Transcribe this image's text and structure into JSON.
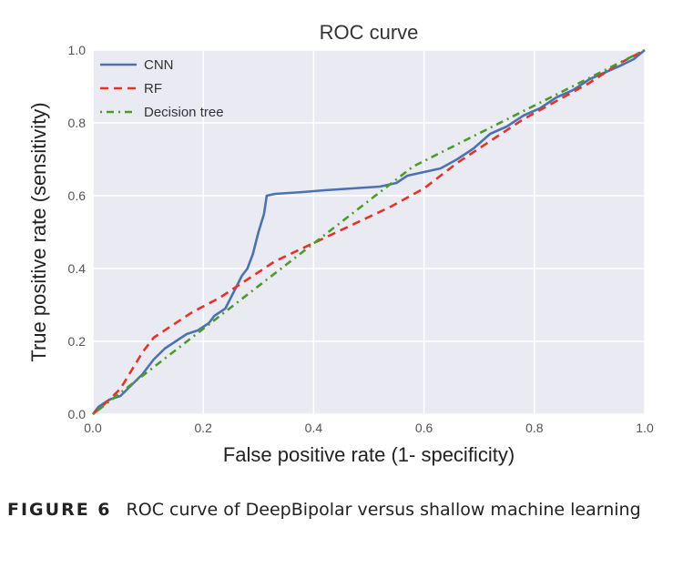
{
  "chart_data": {
    "type": "line",
    "title": "ROC curve",
    "xlabel": "False positive rate (1- specificity)",
    "ylabel": "True positive rate (sensitivity)",
    "xlim": [
      0.0,
      1.0
    ],
    "ylim": [
      0.0,
      1.0
    ],
    "xticks": [
      "0.0",
      "0.2",
      "0.4",
      "0.6",
      "0.8",
      "1.0"
    ],
    "yticks": [
      "0.0",
      "0.2",
      "0.4",
      "0.6",
      "0.8",
      "1.0"
    ],
    "grid": true,
    "legend_position": "top-left",
    "series": [
      {
        "name": "CNN",
        "color": "#4c72b0",
        "style": "solid",
        "points": [
          [
            0.0,
            0.0
          ],
          [
            0.01,
            0.02
          ],
          [
            0.02,
            0.03
          ],
          [
            0.03,
            0.04
          ],
          [
            0.05,
            0.05
          ],
          [
            0.07,
            0.08
          ],
          [
            0.09,
            0.11
          ],
          [
            0.11,
            0.15
          ],
          [
            0.13,
            0.18
          ],
          [
            0.15,
            0.2
          ],
          [
            0.17,
            0.22
          ],
          [
            0.19,
            0.23
          ],
          [
            0.21,
            0.25
          ],
          [
            0.22,
            0.27
          ],
          [
            0.24,
            0.29
          ],
          [
            0.25,
            0.32
          ],
          [
            0.26,
            0.35
          ],
          [
            0.27,
            0.38
          ],
          [
            0.28,
            0.4
          ],
          [
            0.29,
            0.44
          ],
          [
            0.3,
            0.5
          ],
          [
            0.31,
            0.55
          ],
          [
            0.315,
            0.6
          ],
          [
            0.33,
            0.605
          ],
          [
            0.38,
            0.61
          ],
          [
            0.42,
            0.615
          ],
          [
            0.47,
            0.62
          ],
          [
            0.52,
            0.625
          ],
          [
            0.55,
            0.635
          ],
          [
            0.57,
            0.655
          ],
          [
            0.6,
            0.665
          ],
          [
            0.63,
            0.675
          ],
          [
            0.66,
            0.7
          ],
          [
            0.69,
            0.73
          ],
          [
            0.72,
            0.77
          ],
          [
            0.75,
            0.79
          ],
          [
            0.78,
            0.82
          ],
          [
            0.81,
            0.84
          ],
          [
            0.84,
            0.87
          ],
          [
            0.87,
            0.89
          ],
          [
            0.9,
            0.92
          ],
          [
            0.93,
            0.94
          ],
          [
            0.96,
            0.96
          ],
          [
            0.98,
            0.975
          ],
          [
            1.0,
            1.0
          ]
        ]
      },
      {
        "name": "RF",
        "color": "#e0342c",
        "style": "dashed",
        "points": [
          [
            0.0,
            0.0
          ],
          [
            0.03,
            0.04
          ],
          [
            0.05,
            0.07
          ],
          [
            0.07,
            0.12
          ],
          [
            0.09,
            0.17
          ],
          [
            0.11,
            0.21
          ],
          [
            0.14,
            0.24
          ],
          [
            0.18,
            0.28
          ],
          [
            0.23,
            0.32
          ],
          [
            0.28,
            0.37
          ],
          [
            0.33,
            0.42
          ],
          [
            0.4,
            0.47
          ],
          [
            0.47,
            0.52
          ],
          [
            0.54,
            0.57
          ],
          [
            0.6,
            0.62
          ],
          [
            0.66,
            0.69
          ],
          [
            0.72,
            0.75
          ],
          [
            0.78,
            0.81
          ],
          [
            0.84,
            0.86
          ],
          [
            0.9,
            0.91
          ],
          [
            0.95,
            0.96
          ],
          [
            1.0,
            1.0
          ]
        ]
      },
      {
        "name": "Decision tree",
        "color": "#4c9a2a",
        "style": "dashdot",
        "points": [
          [
            0.0,
            0.0
          ],
          [
            0.58,
            0.68
          ],
          [
            1.0,
            1.0
          ]
        ]
      }
    ]
  },
  "caption": {
    "label": "FIGURE 6",
    "text": "ROC curve of DeepBipolar versus shallow machine learning"
  }
}
